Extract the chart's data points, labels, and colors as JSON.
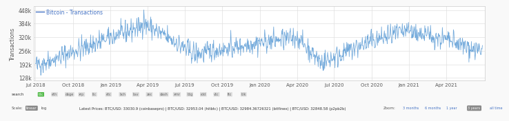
{
  "title": "Bitcoin - Transactions",
  "ylabel": "Transactions",
  "bg_color": "#ffffff",
  "plot_bg_color": "#ffffff",
  "grid_color": "#e0e0e0",
  "line_color": "#5b9bd5",
  "legend_line_color": "#4472c4",
  "yticks": [
    128000,
    192000,
    256000,
    320000,
    384000,
    448000
  ],
  "ytick_labels": [
    "128k",
    "192k",
    "256k",
    "320k",
    "384k",
    "448k"
  ],
  "ylim": [
    115000,
    465000
  ],
  "xlabel_dates": [
    "Jul 2018",
    "Oct 2018",
    "Jan 2019",
    "Apr 2019",
    "Jul 2019",
    "Oct 2019",
    "Jan 2020",
    "Apr 2020",
    "Jul 2020",
    "Oct 2020",
    "Jan 2021",
    "Apr 2021"
  ],
  "footer_bg": "#f5f5f5",
  "title_fontsize": 7,
  "axis_fontsize": 6,
  "line_width": 0.6,
  "footer_text": "Latest Prices: BTC/USD: 33030.9 (coinbasepro) | BTC/USD: 32953.04 (hitbtc) | BTC/USD: 32984.36726321 (bitfinex) | BTC/USD: 32848.58 (p2pb2b)",
  "zoom_text": "Zoom: 3 months  6 months  1 year  3 years  all time"
}
